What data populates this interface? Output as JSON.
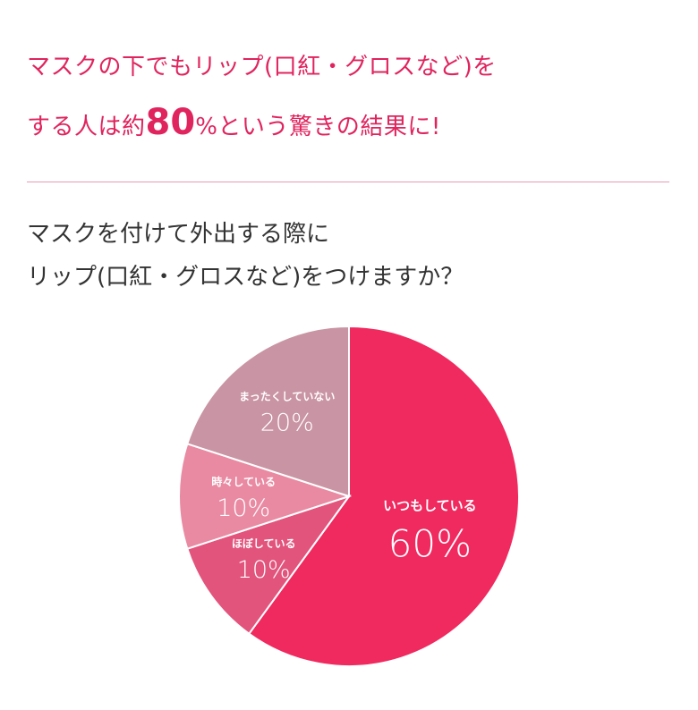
{
  "headline": {
    "line1": "マスクの下でもリップ(口紅・グロスなど)を",
    "line2_before": "する人は約",
    "line2_number": "80",
    "line2_after": "%という驚きの結果に!"
  },
  "question": {
    "line1": "マスクを付けて外出する際に",
    "line2": "リップ(口紅・グロスなど)をつけますか？"
  },
  "colors": {
    "accent": "#e0245e",
    "divider": "#e89ab2",
    "question_text": "#333333"
  },
  "chart_data": {
    "type": "pie",
    "title": "",
    "slices": [
      {
        "label": "いつもしている",
        "value": 60,
        "display": "60%",
        "color": "#f0295f"
      },
      {
        "label": "ほぼしている",
        "value": 10,
        "display": "10%",
        "color": "#e2547c"
      },
      {
        "label": "時々している",
        "value": 10,
        "display": "10%",
        "color": "#e98aa2"
      },
      {
        "label": "まったくしていない",
        "value": 20,
        "display": "20%",
        "color": "#c994a3"
      }
    ],
    "start": "12 o'clock",
    "direction": "clockwise",
    "legend": "none"
  }
}
